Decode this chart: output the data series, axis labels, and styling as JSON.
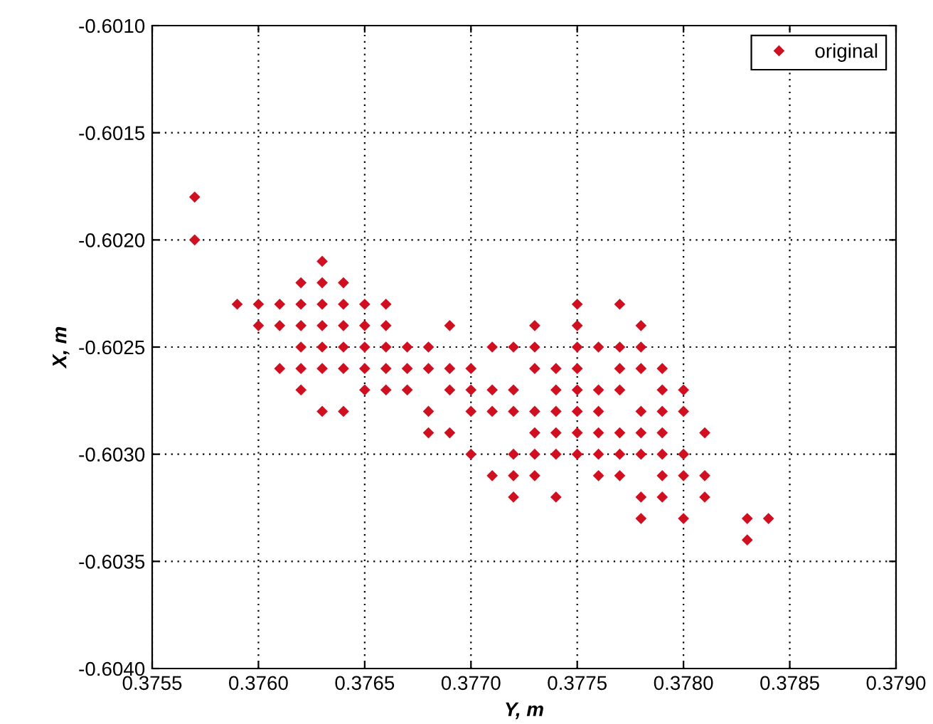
{
  "chart_data": {
    "type": "scatter",
    "xlabel": "Y, m",
    "ylabel": "X, m",
    "xlim": [
      0.3755,
      0.379
    ],
    "ylim": [
      -0.604,
      -0.601
    ],
    "xticks": [
      {
        "value": 0.3755,
        "label": "0.3755"
      },
      {
        "value": 0.376,
        "label": "0.3760"
      },
      {
        "value": 0.3765,
        "label": "0.3765"
      },
      {
        "value": 0.377,
        "label": "0.3770"
      },
      {
        "value": 0.3775,
        "label": "0.3775"
      },
      {
        "value": 0.378,
        "label": "0.3780"
      },
      {
        "value": 0.3785,
        "label": "0.3785"
      },
      {
        "value": 0.379,
        "label": "0.3790"
      }
    ],
    "yticks": [
      {
        "value": -0.604,
        "label": "-0.6040"
      },
      {
        "value": -0.6035,
        "label": "-0.6035"
      },
      {
        "value": -0.603,
        "label": "-0.6030"
      },
      {
        "value": -0.6025,
        "label": "-0.6025"
      },
      {
        "value": -0.602,
        "label": "-0.6020"
      },
      {
        "value": -0.6015,
        "label": "-0.6015"
      },
      {
        "value": -0.601,
        "label": "-0.6010"
      }
    ],
    "grid": true,
    "legend": "top right",
    "marker": "diamond",
    "series": [
      {
        "name": "original",
        "color": "#d01020",
        "x": [
          0.3757,
          0.3757,
          0.3763,
          0.3762,
          0.3763,
          0.3764,
          0.3759,
          0.376,
          0.3761,
          0.3762,
          0.3763,
          0.3764,
          0.3765,
          0.3766,
          0.3775,
          0.3777,
          0.376,
          0.3761,
          0.3762,
          0.3763,
          0.3764,
          0.3765,
          0.3766,
          0.3769,
          0.3773,
          0.3775,
          0.3778,
          0.3762,
          0.3763,
          0.3764,
          0.3765,
          0.3766,
          0.3767,
          0.3768,
          0.3771,
          0.3772,
          0.3773,
          0.3775,
          0.3776,
          0.3777,
          0.3778,
          0.3761,
          0.3762,
          0.3763,
          0.3764,
          0.3765,
          0.3766,
          0.3767,
          0.3768,
          0.3769,
          0.377,
          0.3773,
          0.3774,
          0.3775,
          0.3777,
          0.3778,
          0.3779,
          0.3762,
          0.3765,
          0.3766,
          0.3767,
          0.3769,
          0.377,
          0.3771,
          0.3772,
          0.3774,
          0.3775,
          0.3776,
          0.3777,
          0.3779,
          0.378,
          0.3763,
          0.3764,
          0.3768,
          0.377,
          0.3771,
          0.3772,
          0.3773,
          0.3774,
          0.3775,
          0.3776,
          0.3778,
          0.3779,
          0.378,
          0.3768,
          0.3769,
          0.3773,
          0.3774,
          0.3775,
          0.3776,
          0.3777,
          0.3778,
          0.3779,
          0.3781,
          0.377,
          0.3772,
          0.3773,
          0.3774,
          0.3775,
          0.3776,
          0.3777,
          0.3778,
          0.3779,
          0.378,
          0.3771,
          0.3772,
          0.3773,
          0.3776,
          0.3777,
          0.3779,
          0.378,
          0.3781,
          0.3772,
          0.3774,
          0.3778,
          0.3779,
          0.3781,
          0.3778,
          0.378,
          0.3783,
          0.3784,
          0.3783
        ],
        "values": [
          -0.6018,
          -0.602,
          -0.6021,
          -0.6022,
          -0.6022,
          -0.6022,
          -0.6023,
          -0.6023,
          -0.6023,
          -0.6023,
          -0.6023,
          -0.6023,
          -0.6023,
          -0.6023,
          -0.6023,
          -0.6023,
          -0.6024,
          -0.6024,
          -0.6024,
          -0.6024,
          -0.6024,
          -0.6024,
          -0.6024,
          -0.6024,
          -0.6024,
          -0.6024,
          -0.6024,
          -0.6025,
          -0.6025,
          -0.6025,
          -0.6025,
          -0.6025,
          -0.6025,
          -0.6025,
          -0.6025,
          -0.6025,
          -0.6025,
          -0.6025,
          -0.6025,
          -0.6025,
          -0.6025,
          -0.6026,
          -0.6026,
          -0.6026,
          -0.6026,
          -0.6026,
          -0.6026,
          -0.6026,
          -0.6026,
          -0.6026,
          -0.6026,
          -0.6026,
          -0.6026,
          -0.6026,
          -0.6026,
          -0.6026,
          -0.6026,
          -0.6027,
          -0.6027,
          -0.6027,
          -0.6027,
          -0.6027,
          -0.6027,
          -0.6027,
          -0.6027,
          -0.6027,
          -0.6027,
          -0.6027,
          -0.6027,
          -0.6027,
          -0.6027,
          -0.6028,
          -0.6028,
          -0.6028,
          -0.6028,
          -0.6028,
          -0.6028,
          -0.6028,
          -0.6028,
          -0.6028,
          -0.6028,
          -0.6028,
          -0.6028,
          -0.6028,
          -0.6029,
          -0.6029,
          -0.6029,
          -0.6029,
          -0.6029,
          -0.6029,
          -0.6029,
          -0.6029,
          -0.6029,
          -0.6029,
          -0.603,
          -0.603,
          -0.603,
          -0.603,
          -0.603,
          -0.603,
          -0.603,
          -0.603,
          -0.603,
          -0.603,
          -0.6031,
          -0.6031,
          -0.6031,
          -0.6031,
          -0.6031,
          -0.6031,
          -0.6031,
          -0.6031,
          -0.6032,
          -0.6032,
          -0.6032,
          -0.6032,
          -0.6032,
          -0.6033,
          -0.6033,
          -0.6033,
          -0.6033,
          -0.6034
        ]
      }
    ]
  }
}
